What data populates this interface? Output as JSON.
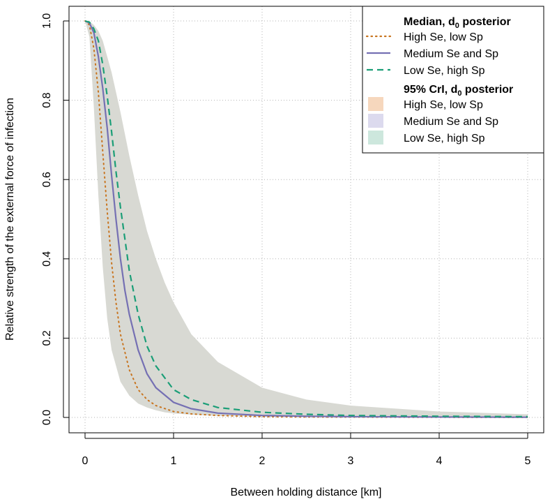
{
  "chart_data": {
    "type": "line",
    "xlabel": "Between holding distance [km]",
    "ylabel": "Relative strength of the external force of infection",
    "xlim": [
      0,
      5
    ],
    "ylim": [
      0,
      1
    ],
    "x_ticks": [
      "0",
      "1",
      "2",
      "3",
      "4",
      "5"
    ],
    "y_ticks": [
      "0.0",
      "0.2",
      "0.4",
      "0.6",
      "0.8",
      "1.0"
    ],
    "grid": true,
    "grid_style": "dotted",
    "legend_position": "top-right",
    "legend": {
      "median_header": {
        "main": "Median, d",
        "sub": "0",
        "tail": " posterior"
      },
      "crl_header": {
        "main": "95% CrI, d",
        "sub": "0",
        "tail": " posterior"
      }
    },
    "series": [
      {
        "name": "High Se, low Sp",
        "color": "#c8741f",
        "line_style": "dotted",
        "band_color": "#f6d7bd",
        "x": [
          0,
          0.05,
          0.1,
          0.15,
          0.2,
          0.25,
          0.3,
          0.35,
          0.4,
          0.5,
          0.6,
          0.7,
          0.8,
          1.0,
          1.2,
          1.5,
          2.0,
          2.5,
          3.0,
          4.0,
          5.0
        ],
        "y": [
          1.0,
          0.99,
          0.93,
          0.82,
          0.67,
          0.52,
          0.39,
          0.29,
          0.21,
          0.12,
          0.07,
          0.045,
          0.03,
          0.015,
          0.009,
          0.005,
          0.002,
          0.001,
          0.0008,
          0.0004,
          0.0002
        ]
      },
      {
        "name": "Medium Se and Sp",
        "color": "#7570b3",
        "line_style": "solid",
        "band_color": "#dcdaee",
        "x": [
          0,
          0.05,
          0.1,
          0.15,
          0.2,
          0.25,
          0.3,
          0.35,
          0.4,
          0.45,
          0.5,
          0.6,
          0.7,
          0.8,
          1.0,
          1.2,
          1.5,
          2.0,
          2.5,
          3.0,
          4.0,
          5.0
        ],
        "y": [
          1.0,
          0.995,
          0.97,
          0.91,
          0.83,
          0.73,
          0.61,
          0.5,
          0.4,
          0.32,
          0.26,
          0.17,
          0.11,
          0.075,
          0.038,
          0.022,
          0.011,
          0.005,
          0.003,
          0.002,
          0.001,
          0.0005
        ]
      },
      {
        "name": "Low Se, high Sp",
        "color": "#1b9e77",
        "line_style": "dashed",
        "band_color": "#cde7dd",
        "x": [
          0,
          0.05,
          0.1,
          0.15,
          0.2,
          0.25,
          0.3,
          0.35,
          0.4,
          0.45,
          0.5,
          0.6,
          0.7,
          0.8,
          1.0,
          1.2,
          1.5,
          2.0,
          2.5,
          3.0,
          4.0,
          5.0
        ],
        "y": [
          1.0,
          0.997,
          0.98,
          0.95,
          0.89,
          0.81,
          0.72,
          0.62,
          0.53,
          0.45,
          0.37,
          0.26,
          0.18,
          0.13,
          0.07,
          0.045,
          0.025,
          0.013,
          0.008,
          0.005,
          0.003,
          0.002
        ]
      }
    ],
    "band": {
      "fill": "#d8d9d3",
      "x": [
        0,
        0.05,
        0.1,
        0.15,
        0.2,
        0.25,
        0.3,
        0.4,
        0.5,
        0.6,
        0.7,
        0.8,
        0.9,
        1.0,
        1.2,
        1.5,
        2.0,
        2.5,
        3.0,
        4.0,
        5.0
      ],
      "upper": [
        1.0,
        0.999,
        0.99,
        0.975,
        0.95,
        0.91,
        0.87,
        0.77,
        0.66,
        0.56,
        0.47,
        0.4,
        0.34,
        0.29,
        0.21,
        0.14,
        0.075,
        0.045,
        0.03,
        0.015,
        0.008
      ],
      "lower": [
        1.0,
        0.96,
        0.78,
        0.56,
        0.38,
        0.25,
        0.17,
        0.09,
        0.055,
        0.035,
        0.025,
        0.018,
        0.013,
        0.01,
        0.007,
        0.004,
        0.002,
        0.001,
        0.0008,
        0.0004,
        0.0002
      ]
    }
  }
}
